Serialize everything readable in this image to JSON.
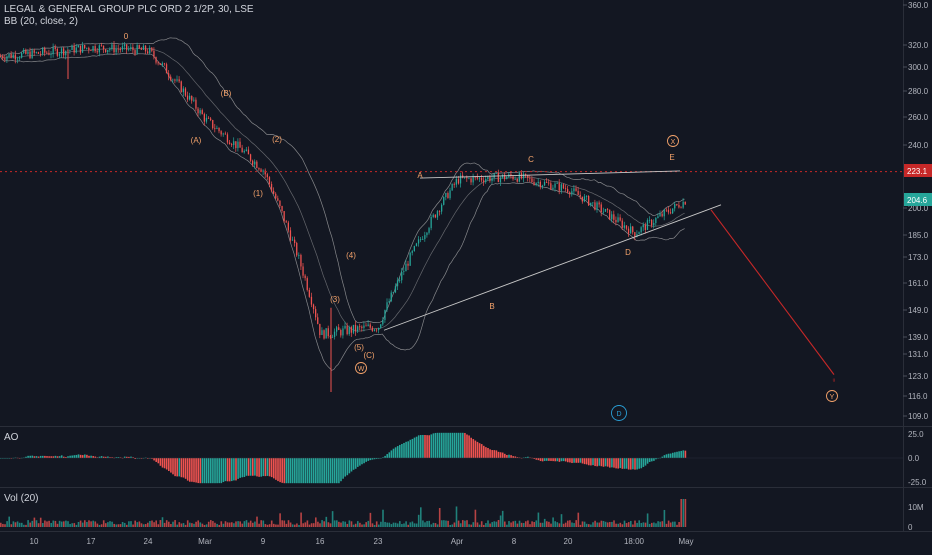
{
  "header": {
    "symbol_title": "LEGAL & GENERAL GROUP PLC ORD 2 1/2P, 30, LSE",
    "indicator_label": "BB (20, close, 2)"
  },
  "panes": {
    "ao_label": "AO",
    "vol_label": "Vol (20)"
  },
  "colors": {
    "background": "#131722",
    "bull": "#26a69a",
    "bear": "#ef5350",
    "ao_up": "#26a69a",
    "ao_down": "#ef5350",
    "wave_label": "#f5a36b",
    "projection": "#c62828",
    "bands": "#b8b8b8",
    "d_circle": "#2a9fd6",
    "last_price_bg": "#26a69a",
    "ref_price_bg": "#c62828"
  },
  "chart_data": [
    {
      "type": "candlestick",
      "title": "LEGAL & GENERAL GROUP PLC ORD 2 1/2P, 30, LSE",
      "indicator": "BB (20, close, 2)",
      "x_ticks": [
        "10",
        "17",
        "24",
        "Mar",
        "9",
        "16",
        "23",
        "Apr",
        "8",
        "20",
        "18:00",
        "May"
      ],
      "y_ticks": [
        360.0,
        320.0,
        300.0,
        280.0,
        260.0,
        240.0,
        200.0,
        185.0,
        173.0,
        161.0,
        149.0,
        139.0,
        131.0,
        123.0,
        116.0,
        109.0
      ],
      "y_axis_tick_labels": [
        "360.0",
        "320.0",
        "300.0",
        "280.0",
        "260.0",
        "240.0",
        "200.0",
        "185.0",
        "173.0",
        "161.0",
        "149.0",
        "139.0",
        "131.0",
        "123.0",
        "116.0",
        "109.0"
      ],
      "price_badges": [
        {
          "label": "223.1",
          "kind": "reference"
        },
        {
          "label": "204.6",
          "kind": "last"
        }
      ],
      "price_path": [
        {
          "x": "10",
          "price": 312
        },
        {
          "x": "17",
          "price": 318
        },
        {
          "x": "24",
          "price": 315
        },
        {
          "x": "Mar",
          "price": 258
        },
        {
          "x": "9",
          "price": 224
        },
        {
          "x": "16",
          "price": 140
        },
        {
          "x": "23",
          "price": 143
        },
        {
          "x": "Apr",
          "price": 218
        },
        {
          "x": "8",
          "price": 220
        },
        {
          "x": "20",
          "price": 212
        },
        {
          "x": "18:00",
          "price": 186
        },
        {
          "x": "May",
          "price": 205
        }
      ],
      "wave_labels": [
        "0",
        "(A)",
        "(B)",
        "(1)",
        "(2)",
        "(3)",
        "(4)",
        "(5)",
        "(C)",
        "W",
        "A",
        "B",
        "C",
        "D",
        "E",
        "X",
        "Y",
        "D"
      ],
      "reference_line_price": 223.1,
      "last_price": 204.6
    },
    {
      "type": "bar",
      "title": "AO",
      "y_ticks": [
        25.0,
        0.0,
        -25.0
      ],
      "y_axis_tick_labels": [
        "25.0",
        "0.0",
        "-25.0"
      ]
    },
    {
      "type": "bar",
      "title": "Vol (20)",
      "y_ticks": [
        10000000,
        0
      ],
      "y_axis_tick_labels": [
        "10M",
        "0"
      ]
    }
  ]
}
